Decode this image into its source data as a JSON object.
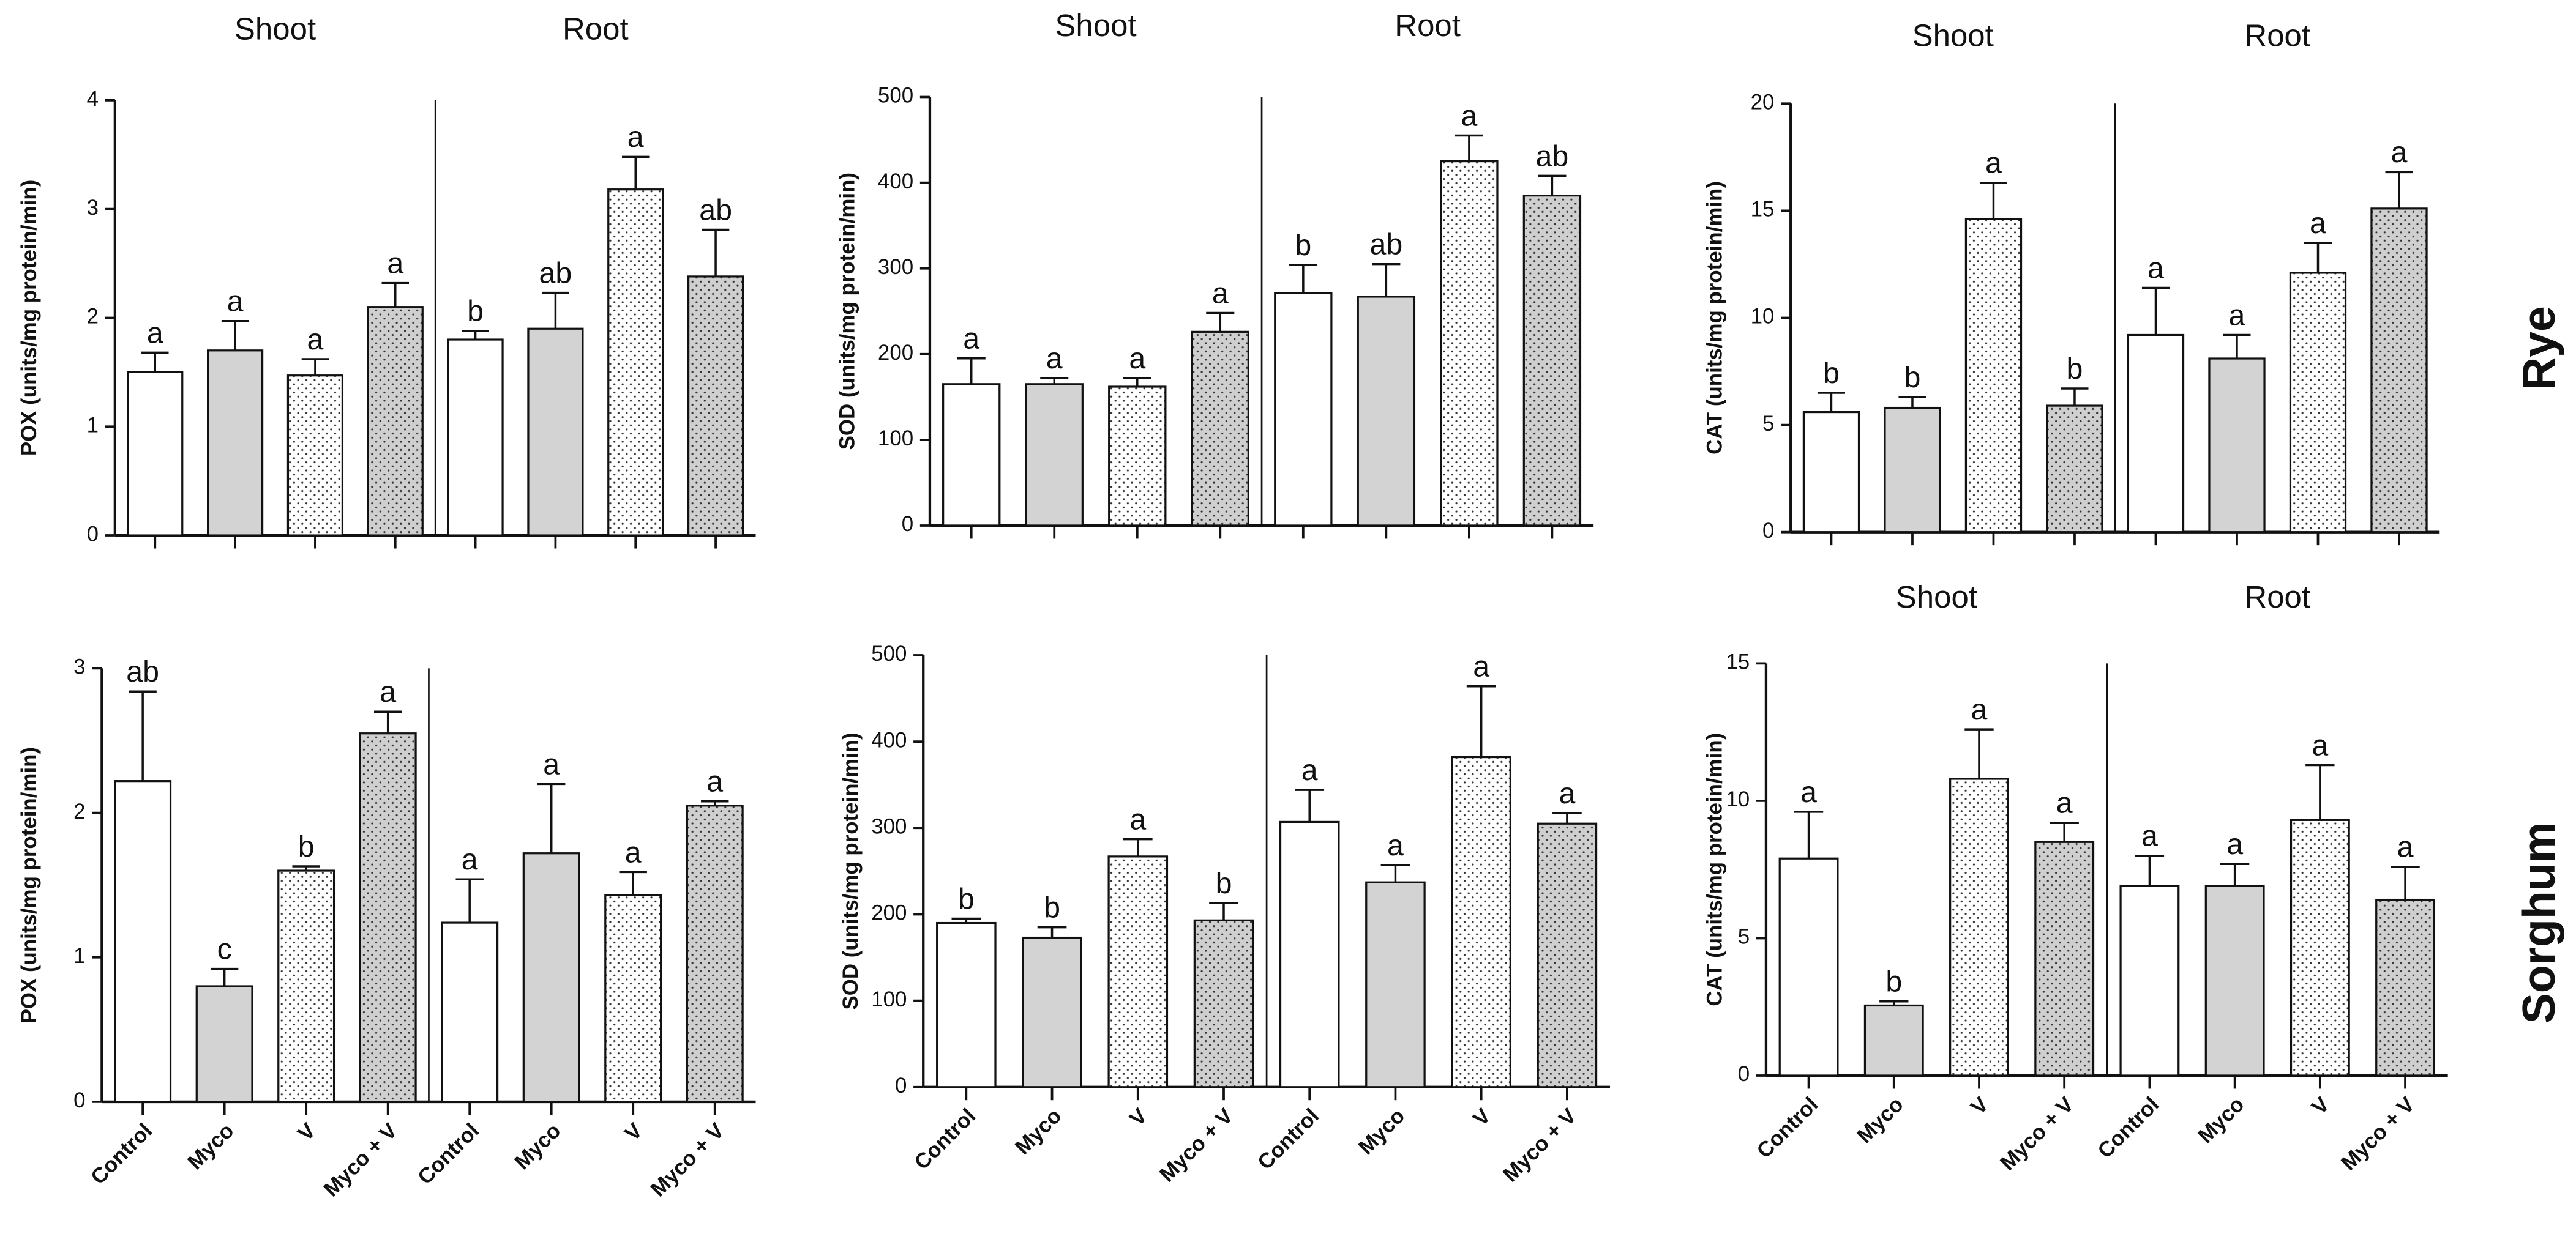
{
  "chart_data": [
    {
      "type": "bar",
      "ylabel": "POX (units/mg protein/min)",
      "groups": [
        "Shoot",
        "Root"
      ],
      "values": [
        1.5,
        1.7,
        1.47,
        2.1,
        1.8,
        1.9,
        3.18,
        2.38
      ],
      "errors": [
        0.18,
        0.27,
        0.15,
        0.22,
        0.08,
        0.33,
        0.3,
        0.43
      ],
      "letters": [
        "a",
        "a",
        "a",
        "a",
        "b",
        "ab",
        "a",
        "ab"
      ],
      "bar_fills": [
        "white",
        "gray",
        "dotted-white",
        "dotted-gray",
        "white",
        "gray",
        "dotted-white",
        "dotted-gray"
      ],
      "ylim": [
        0,
        4
      ],
      "yticks": [
        0,
        1,
        2,
        3,
        4
      ]
    },
    {
      "type": "bar",
      "ylabel": "SOD (units/mg protein/min)",
      "groups": [
        "Shoot",
        "Root"
      ],
      "values": [
        165,
        165,
        162,
        226,
        271,
        267,
        425,
        385
      ],
      "errors": [
        30,
        7,
        10,
        22,
        33,
        38,
        30,
        23
      ],
      "letters": [
        "a",
        "a",
        "a",
        "a",
        "b",
        "ab",
        "a",
        "ab"
      ],
      "bar_fills": [
        "white",
        "gray",
        "dotted-white",
        "dotted-gray",
        "white",
        "gray",
        "dotted-white",
        "dotted-gray"
      ],
      "ylim": [
        0,
        500
      ],
      "yticks": [
        0,
        100,
        200,
        300,
        400,
        500
      ]
    },
    {
      "type": "bar",
      "ylabel": "CAT (units/mg protein/min)",
      "groups": [
        "Shoot",
        "Root"
      ],
      "values": [
        5.6,
        5.8,
        14.6,
        5.9,
        9.2,
        8.1,
        12.1,
        15.1
      ],
      "errors": [
        0.9,
        0.5,
        1.7,
        0.8,
        2.2,
        1.1,
        1.4,
        1.7
      ],
      "letters": [
        "b",
        "b",
        "a",
        "b",
        "a",
        "a",
        "a",
        "a"
      ],
      "bar_fills": [
        "white",
        "gray",
        "dotted-white",
        "dotted-gray",
        "white",
        "gray",
        "dotted-white",
        "dotted-gray"
      ],
      "ylim": [
        0,
        20
      ],
      "yticks": [
        0,
        5,
        10,
        15,
        20
      ]
    },
    {
      "type": "bar",
      "ylabel": "POX (units/mg protein/min)",
      "categories": [
        "Control",
        "Myco",
        "V",
        "Myco + V",
        "Control",
        "Myco",
        "V",
        "Myco + V"
      ],
      "values": [
        2.22,
        0.8,
        1.6,
        2.55,
        1.24,
        1.72,
        1.43,
        2.05
      ],
      "errors": [
        0.62,
        0.12,
        0.03,
        0.15,
        0.3,
        0.48,
        0.16,
        0.03
      ],
      "letters": [
        "ab",
        "c",
        "b",
        "a",
        "a",
        "a",
        "a",
        "a"
      ],
      "bar_fills": [
        "white",
        "gray",
        "dotted-white",
        "dotted-gray",
        "white",
        "gray",
        "dotted-white",
        "dotted-gray"
      ],
      "ylim": [
        0,
        3
      ],
      "yticks": [
        0,
        1,
        2,
        3
      ]
    },
    {
      "type": "bar",
      "ylabel": "SOD (units/mg protein/min)",
      "categories": [
        "Control",
        "Myco",
        "V",
        "Myco + V",
        "Control",
        "Myco",
        "V",
        "Myco + V"
      ],
      "values": [
        190,
        173,
        267,
        193,
        307,
        237,
        382,
        305
      ],
      "errors": [
        5,
        12,
        20,
        20,
        37,
        20,
        82,
        12
      ],
      "letters": [
        "b",
        "b",
        "a",
        "b",
        "a",
        "a",
        "a",
        "a"
      ],
      "bar_fills": [
        "white",
        "gray",
        "dotted-white",
        "dotted-gray",
        "white",
        "gray",
        "dotted-white",
        "dotted-gray"
      ],
      "ylim": [
        0,
        500
      ],
      "yticks": [
        0,
        100,
        200,
        300,
        400,
        500
      ]
    },
    {
      "type": "bar",
      "ylabel": "CAT (units/mg protein/min)",
      "groups": [
        "Shoot",
        "Root"
      ],
      "categories": [
        "Control",
        "Myco",
        "V",
        "Myco + V",
        "Control",
        "Myco",
        "V",
        "Myco + V"
      ],
      "values": [
        7.9,
        2.55,
        10.8,
        8.5,
        6.9,
        6.9,
        9.3,
        6.4
      ],
      "errors": [
        1.7,
        0.15,
        1.8,
        0.7,
        1.1,
        0.8,
        2.0,
        1.2
      ],
      "letters": [
        "a",
        "b",
        "a",
        "a",
        "a",
        "a",
        "a",
        "a"
      ],
      "bar_fills": [
        "white",
        "gray",
        "dotted-white",
        "dotted-gray",
        "white",
        "gray",
        "dotted-white",
        "dotted-gray"
      ],
      "ylim": [
        0,
        15
      ],
      "yticks": [
        0,
        5,
        10,
        15
      ]
    }
  ],
  "row_labels": [
    "Rye",
    "Sorghum"
  ]
}
